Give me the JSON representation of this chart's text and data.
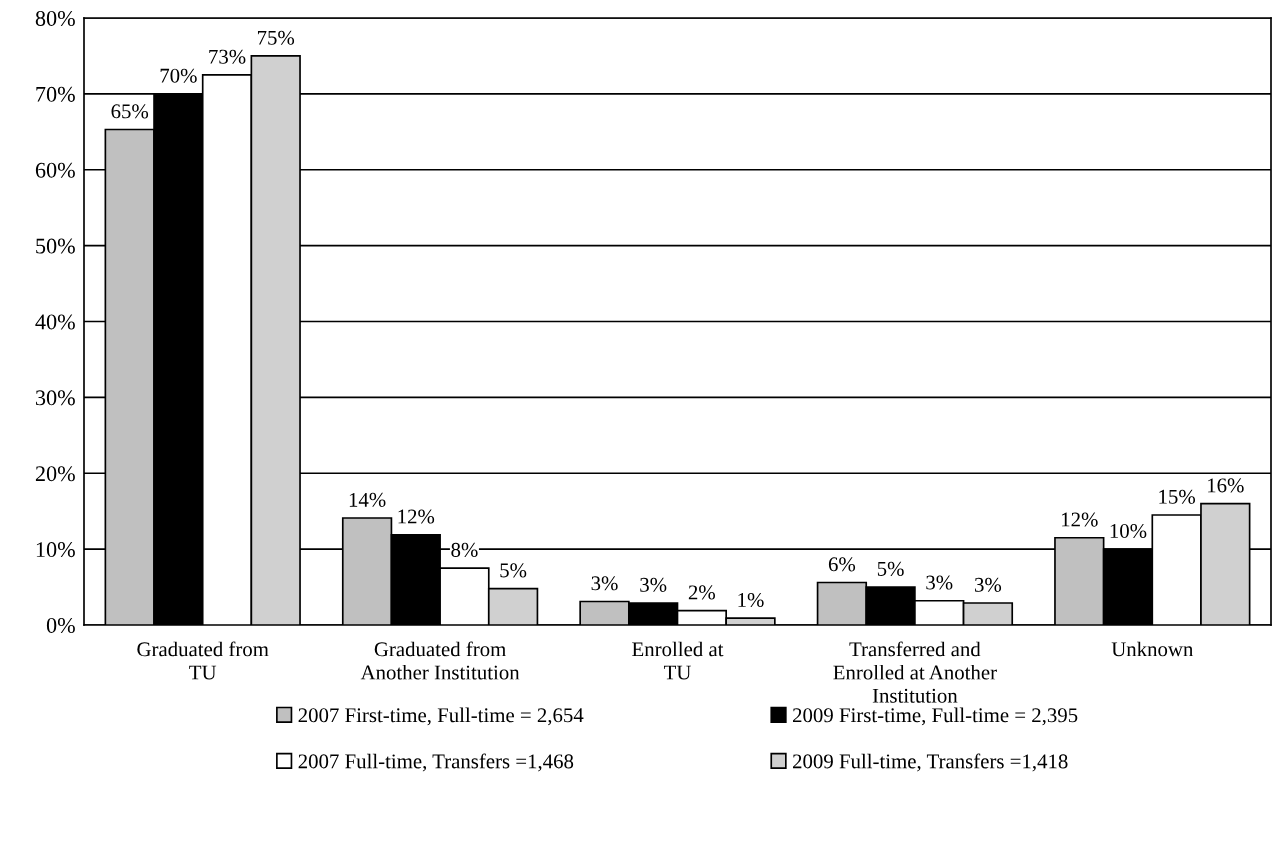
{
  "chart_data": {
    "type": "bar",
    "categories": [
      "Graduated from\nTU",
      "Graduated from\nAnother Institution",
      "Enrolled at\nTU",
      "Transferred and\nEnrolled at Another\nInstitution",
      "Unknown"
    ],
    "series": [
      {
        "name": "2007 First-time, Full-time = 2,654",
        "color": "#c0c0c0",
        "values": [
          65.3,
          14.1,
          3.1,
          5.6,
          11.5
        ],
        "value_labels": [
          "65%",
          "14%",
          "3%",
          "6%",
          "12%"
        ]
      },
      {
        "name": "2009 First-time, Full-time = 2,395",
        "color": "#000000",
        "values": [
          70.0,
          11.9,
          2.9,
          5.0,
          10.0
        ],
        "value_labels": [
          "70%",
          "12%",
          "3%",
          "5%",
          "10%"
        ]
      },
      {
        "name": "2007 Full-time, Transfers =1,468",
        "color": "#ffffff",
        "values": [
          72.5,
          7.5,
          1.9,
          3.2,
          14.5
        ],
        "value_labels": [
          "73%",
          "8%",
          "2%",
          "3%",
          "15%"
        ]
      },
      {
        "name": "2009 Full-time, Transfers =1,418",
        "color": "#d0d0d0",
        "values": [
          75.0,
          4.8,
          0.9,
          2.9,
          16.0
        ],
        "value_labels": [
          "75%",
          "5%",
          "1%",
          "3%",
          "16%"
        ]
      }
    ],
    "ylim": [
      0,
      80
    ],
    "yticks": [
      {
        "value": 0,
        "label": "0%"
      },
      {
        "value": 10,
        "label": "10%"
      },
      {
        "value": 20,
        "label": "20%"
      },
      {
        "value": 30,
        "label": "30%"
      },
      {
        "value": 40,
        "label": "40%"
      },
      {
        "value": 50,
        "label": "50%"
      },
      {
        "value": 60,
        "label": "60%"
      },
      {
        "value": 70,
        "label": "70%"
      },
      {
        "value": 80,
        "label": "80%"
      }
    ],
    "grid": "y",
    "legend": "bottom"
  }
}
